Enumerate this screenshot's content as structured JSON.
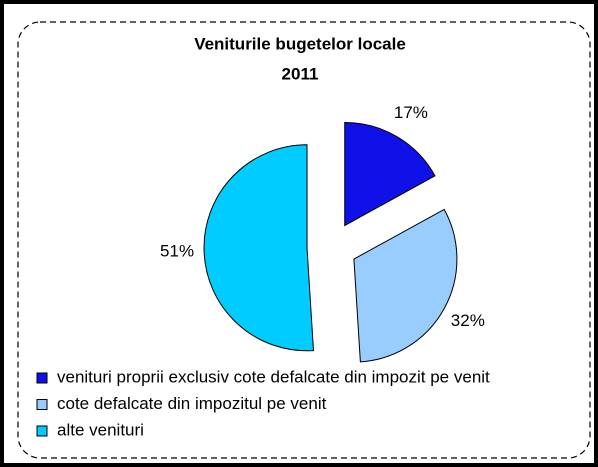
{
  "chart_data": {
    "type": "pie",
    "title": "Veniturile bugetelor locale",
    "subtitle": "2011",
    "categories": [
      "venituri proprii exclusiv cote defalcate din impozit pe venit",
      "cote defalcate din impozitul pe venit",
      "alte venituri"
    ],
    "values": [
      17,
      32,
      51
    ],
    "value_labels": [
      "17%",
      "32%",
      "51%"
    ],
    "colors": [
      "#1010e8",
      "#99ccff",
      "#00ccff"
    ],
    "legend": "bottom"
  }
}
